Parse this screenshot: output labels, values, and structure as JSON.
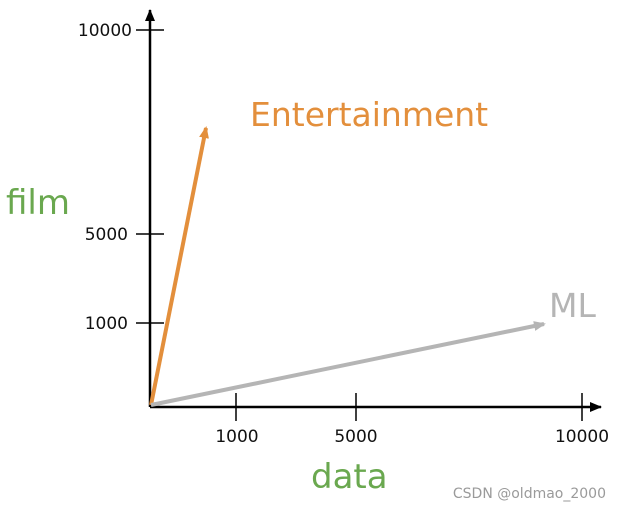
{
  "diagram": {
    "x_axis": {
      "title": "data",
      "ticks": [
        {
          "value": 1000,
          "label": "1000"
        },
        {
          "value": 5000,
          "label": "5000"
        },
        {
          "value": 10000,
          "label": "10000"
        }
      ]
    },
    "y_axis": {
      "title": "film",
      "ticks": [
        {
          "value": 1000,
          "label": "1000"
        },
        {
          "value": 5000,
          "label": "5000"
        },
        {
          "value": 10000,
          "label": "10000"
        }
      ]
    },
    "vectors": [
      {
        "label": "Entertainment",
        "color": "#e38f3c"
      },
      {
        "label": "ML",
        "color": "#b5b5b5"
      }
    ],
    "title_color": "#6aa84f",
    "watermark": "CSDN @oldmao_2000"
  }
}
